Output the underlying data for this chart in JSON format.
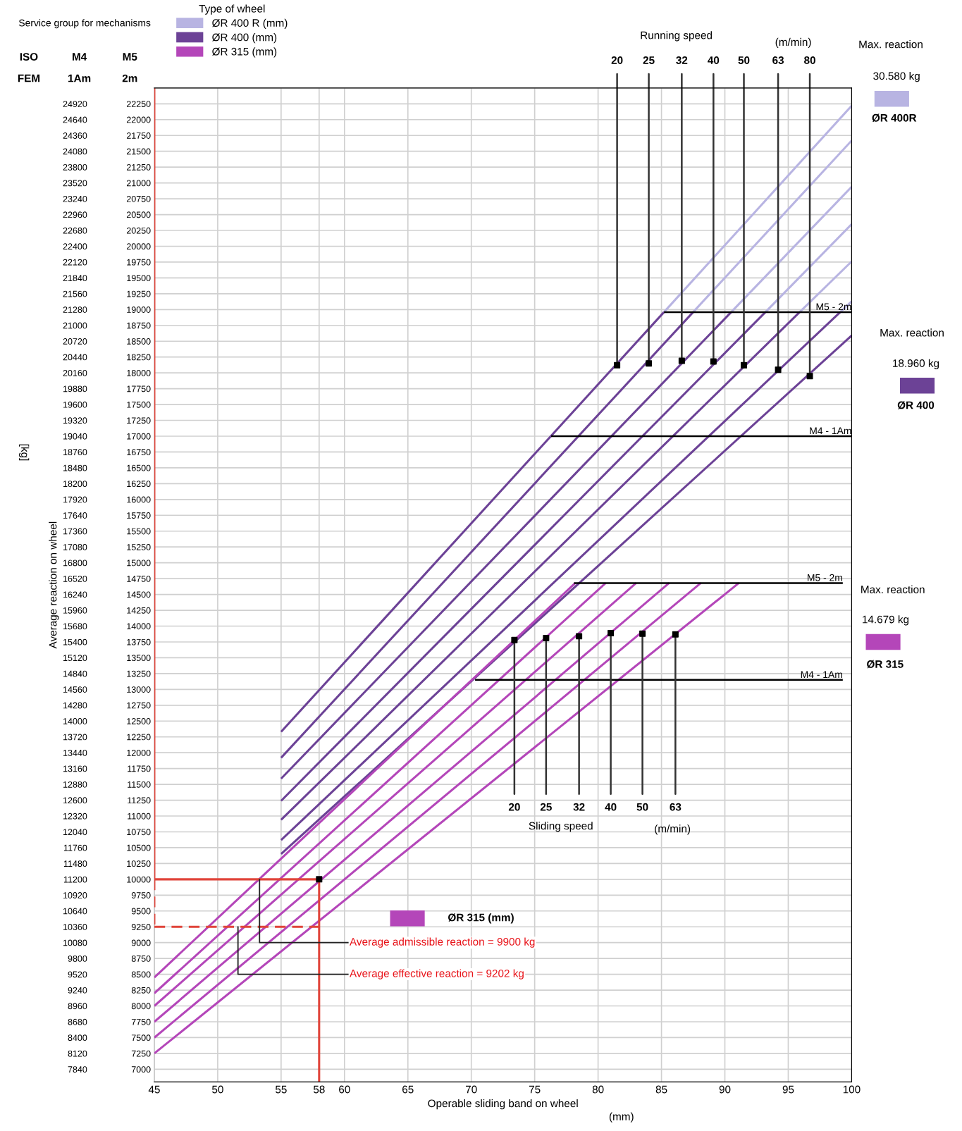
{
  "chart_data": {
    "type": "line",
    "xlabel": "Operable sliding band on wheel",
    "y2label": "Average reaction on wheel",
    "legend_title": "Type of wheel",
    "legend": "top left",
    "grid": true,
    "xlim": [
      45,
      100
    ],
    "xticks": [
      45,
      50,
      55,
      58,
      60,
      65,
      70,
      75,
      80,
      85,
      90,
      95,
      100
    ],
    "ylim": [
      6800,
      22500
    ],
    "yticks": [
      7000,
      7250,
      7500,
      7750,
      8000,
      8250,
      8500,
      8750,
      9000,
      9250,
      9500,
      9750,
      10000,
      10250,
      10500,
      10750,
      11000,
      11250,
      11500,
      11750,
      12000,
      12250,
      12500,
      12750,
      13000,
      13250,
      13500,
      13750,
      14000,
      14250,
      14500,
      14750,
      15000,
      15250,
      15500,
      15750,
      16000,
      16250,
      16500,
      16750,
      17000,
      17250,
      17500,
      17750,
      18000,
      18250,
      18500,
      18750,
      19000,
      19250,
      19500,
      19750,
      20000,
      20250,
      20500,
      20750,
      21000,
      21250,
      21500,
      21750,
      22000,
      22250
    ],
    "y2lim": [
      7616,
      25200
    ],
    "y2ticks": [
      7840,
      8120,
      8400,
      8680,
      8960,
      9240,
      9520,
      9800,
      10080,
      10360,
      10640,
      10920,
      11200,
      11480,
      11760,
      12040,
      12320,
      12600,
      12880,
      13160,
      13440,
      13720,
      14000,
      14280,
      14560,
      14840,
      15120,
      15400,
      15680,
      15960,
      16240,
      16520,
      16800,
      17080,
      17360,
      17640,
      17920,
      18200,
      18480,
      18760,
      19040,
      19320,
      19600,
      19880,
      20160,
      20440,
      20720,
      21000,
      21280,
      21560,
      21840,
      22120,
      22400,
      22680,
      22960,
      23240,
      23520,
      23800,
      24080,
      24360,
      24640,
      24920
    ],
    "series": [
      {
        "name": "ØR 400 R (mm)",
        "color": "#b8b4e2",
        "x": [
          85.2,
          100
        ],
        "values": [
          18960,
          22220
        ]
      },
      {
        "color": "#b8b4e2",
        "x": [
          87.5,
          100
        ],
        "values": [
          18960,
          21670
        ]
      },
      {
        "color": "#b8b4e2",
        "x": [
          90.5,
          100
        ],
        "values": [
          18960,
          20940
        ]
      },
      {
        "color": "#b8b4e2",
        "x": [
          93.2,
          100
        ],
        "values": [
          18960,
          20350
        ]
      },
      {
        "color": "#b8b4e2",
        "x": [
          95.9,
          100
        ],
        "values": [
          18960,
          19760
        ]
      },
      {
        "color": "#b8b4e2",
        "x": [
          99.1,
          100
        ],
        "values": [
          18960,
          19130
        ]
      },
      {
        "name": "ØR 400 (mm)",
        "color": "#6c4296",
        "x": [
          55,
          85.2
        ],
        "values": [
          12330,
          18960
        ]
      },
      {
        "color": "#6c4296",
        "x": [
          55,
          87.5
        ],
        "values": [
          11920,
          18960
        ]
      },
      {
        "color": "#6c4296",
        "x": [
          55,
          90.5
        ],
        "values": [
          11590,
          18960
        ]
      },
      {
        "color": "#6c4296",
        "x": [
          55,
          93.2
        ],
        "values": [
          11240,
          18960
        ]
      },
      {
        "color": "#6c4296",
        "x": [
          55,
          95.9
        ],
        "values": [
          10940,
          18960
        ]
      },
      {
        "color": "#6c4296",
        "x": [
          55,
          99.1
        ],
        "values": [
          10620,
          18960
        ]
      },
      {
        "color": "#6c4296",
        "x": [
          55,
          100
        ],
        "values": [
          10400,
          18590
        ]
      },
      {
        "name": "ØR 315 (mm)",
        "color": "#b446b9",
        "x": [
          45,
          78.2
        ],
        "values": [
          8450,
          14680
        ]
      },
      {
        "color": "#b446b9",
        "x": [
          45,
          80.6
        ],
        "values": [
          8200,
          14680
        ]
      },
      {
        "color": "#b446b9",
        "x": [
          45,
          83.0
        ],
        "values": [
          8000,
          14680
        ]
      },
      {
        "color": "#b446b9",
        "x": [
          45,
          85.6
        ],
        "values": [
          7750,
          14680
        ]
      },
      {
        "color": "#b446b9",
        "x": [
          45,
          88.1
        ],
        "values": [
          7500,
          14680
        ]
      },
      {
        "color": "#b446b9",
        "x": [
          45,
          91.1
        ],
        "values": [
          7250,
          14680
        ]
      },
      {
        "name": "M5 - 2m",
        "color": "#000000",
        "x": [
          85.2,
          100
        ],
        "values": [
          18960,
          18960
        ]
      },
      {
        "name": "M4 - 1Am",
        "color": "#000000",
        "x": [
          76.3,
          100
        ],
        "values": [
          17000,
          17000
        ]
      },
      {
        "name": "M5 - 2m",
        "color": "#000000",
        "x": [
          78.1,
          99.3
        ],
        "values": [
          14680,
          14680
        ]
      },
      {
        "name": "M4 - 1Am",
        "color": "#000000",
        "x": [
          70.3,
          99.3
        ],
        "values": [
          13150,
          13150
        ]
      },
      {
        "type": "scatter",
        "marker": "square",
        "color": "#000000",
        "x": [
          81.5,
          84.0,
          86.6,
          89.1,
          91.5,
          94.2,
          96.7
        ],
        "values": [
          18120,
          18150,
          18190,
          18180,
          18120,
          18050,
          17950
        ]
      },
      {
        "type": "scatter",
        "marker": "square",
        "color": "#000000",
        "x": [
          73.4,
          75.9,
          78.5,
          81.0,
          83.5,
          86.1
        ],
        "values": [
          13780,
          13810,
          13840,
          13890,
          13880,
          13870
        ]
      },
      {
        "color": "#e0443a",
        "x": [
          45,
          58
        ],
        "values": [
          10000,
          10000
        ]
      },
      {
        "color": "#e0443a",
        "line_style": "dashed",
        "x": [
          45,
          58
        ],
        "values": [
          9250,
          9250
        ]
      },
      {
        "color": "#e0443a",
        "x": [
          58,
          58
        ],
        "values": [
          10000,
          6800
        ]
      },
      {
        "color": "#e0443a",
        "x": [
          45,
          45
        ],
        "values": [
          22500,
          10000
        ]
      },
      {
        "color": "#e0443a",
        "line_style": "dashed",
        "x": [
          45,
          45
        ],
        "values": [
          10000,
          9250
        ]
      },
      {
        "type": "scatter",
        "marker": "square",
        "color": "#000000",
        "x": [
          58
        ],
        "values": [
          10000
        ]
      }
    ],
    "annotations": [
      "Service group for mechanisms",
      "ISO",
      "M4",
      "M5",
      "FEM",
      "1Am",
      "2m",
      "Running speed",
      "(m/min)",
      "Max. reaction",
      "30.580 kg",
      "ØR 400R",
      "Max. reaction",
      "18.960 kg",
      "ØR 400",
      "Max. reaction",
      "14.679 kg",
      "ØR 315",
      "Sliding speed",
      "(m/min)",
      "ØR 315 (mm)",
      "[kg]",
      "(mm)",
      {
        "text": "20",
        "x": 81.5,
        "y": 18120
      },
      {
        "text": "25",
        "x": 84.0,
        "y": 18150
      },
      {
        "text": "32",
        "x": 86.6,
        "y": 18190
      },
      {
        "text": "40",
        "x": 89.1,
        "y": 18180
      },
      {
        "text": "50",
        "x": 91.5,
        "y": 18120
      },
      {
        "text": "63",
        "x": 94.2,
        "y": 18050
      },
      {
        "text": "80",
        "x": 96.7,
        "y": 17950
      },
      {
        "text": "20",
        "x": 73.4,
        "y": 13780
      },
      {
        "text": "25",
        "x": 75.9,
        "y": 13810
      },
      {
        "text": "32",
        "x": 78.5,
        "y": 13840
      },
      {
        "text": "40",
        "x": 81.0,
        "y": 13890
      },
      {
        "text": "50",
        "x": 83.5,
        "y": 13880
      },
      {
        "text": "63",
        "x": 86.1,
        "y": 13870
      },
      {
        "text": "Average admissible reaction = 9900 kg",
        "x": 53.3,
        "y": 10000
      },
      {
        "text": "Average effective reaction = 9202 kg",
        "x": 51.6,
        "y": 9250
      }
    ]
  }
}
